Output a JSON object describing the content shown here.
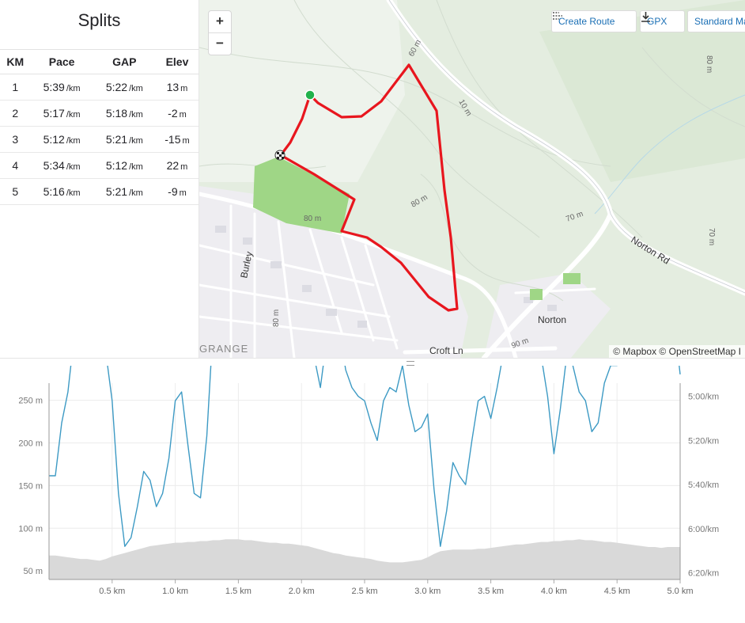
{
  "splits": {
    "title": "Splits",
    "headers": [
      "KM",
      "Pace",
      "GAP",
      "Elev"
    ],
    "rows": [
      {
        "km": "1",
        "pace": "5:39",
        "pace_unit": "/km",
        "gap": "5:22",
        "gap_unit": "/km",
        "elev": "13",
        "elev_unit": "m"
      },
      {
        "km": "2",
        "pace": "5:17",
        "pace_unit": "/km",
        "gap": "5:18",
        "gap_unit": "/km",
        "elev": "-2",
        "elev_unit": "m"
      },
      {
        "km": "3",
        "pace": "5:12",
        "pace_unit": "/km",
        "gap": "5:21",
        "gap_unit": "/km",
        "elev": "-15",
        "elev_unit": "m"
      },
      {
        "km": "4",
        "pace": "5:34",
        "pace_unit": "/km",
        "gap": "5:12",
        "gap_unit": "/km",
        "elev": "22",
        "elev_unit": "m"
      },
      {
        "km": "5",
        "pace": "5:16",
        "pace_unit": "/km",
        "gap": "5:21",
        "gap_unit": "/km",
        "elev": "-9",
        "elev_unit": "m"
      }
    ]
  },
  "map": {
    "zoom_in": "+",
    "zoom_out": "−",
    "create_route": "Create Route",
    "gpx": "GPX",
    "standard_map": "Standard Map",
    "attribution": "© Mapbox © OpenStreetMap I",
    "labels": {
      "norton_rd": "Norton Rd",
      "norton": "Norton",
      "croft_ln": "Croft Ln",
      "burley": "Burley",
      "grange": "GRANGE",
      "c60": "60 m",
      "c70a": "70 m",
      "c70b": "70 m",
      "c80a": "80 m",
      "c80b": "80 m",
      "c80c": "80 m",
      "c80d": "80 m",
      "c10": "10 m",
      "c90": "90 m"
    },
    "colors": {
      "route": "#e8161e",
      "park": "#9fd686",
      "start": "#22b14c"
    },
    "icons": [
      "route-icon",
      "download-icon",
      "checkered-flag-icon"
    ]
  },
  "chart_data": {
    "type": "line",
    "x": [
      0,
      0.05,
      0.1,
      0.15,
      0.2,
      0.25,
      0.3,
      0.35,
      0.4,
      0.45,
      0.5,
      0.55,
      0.6,
      0.65,
      0.7,
      0.75,
      0.8,
      0.85,
      0.9,
      0.95,
      1.0,
      1.05,
      1.1,
      1.15,
      1.2,
      1.25,
      1.3,
      1.35,
      1.4,
      1.45,
      1.5,
      1.55,
      1.6,
      1.65,
      1.7,
      1.75,
      1.8,
      1.85,
      1.9,
      1.95,
      2.0,
      2.05,
      2.1,
      2.15,
      2.2,
      2.25,
      2.3,
      2.35,
      2.4,
      2.45,
      2.5,
      2.55,
      2.6,
      2.65,
      2.7,
      2.75,
      2.8,
      2.85,
      2.9,
      2.95,
      3.0,
      3.05,
      3.1,
      3.15,
      3.2,
      3.25,
      3.3,
      3.35,
      3.4,
      3.45,
      3.5,
      3.55,
      3.6,
      3.65,
      3.7,
      3.75,
      3.8,
      3.85,
      3.9,
      3.95,
      4.0,
      4.05,
      4.1,
      4.15,
      4.2,
      4.25,
      4.3,
      4.35,
      4.4,
      4.45,
      4.5,
      4.55,
      4.6,
      4.65,
      4.7,
      4.75,
      4.8,
      4.85,
      4.9,
      4.95,
      5.0
    ],
    "series": [
      {
        "name": "Pace",
        "axis": "right",
        "unit": "/km",
        "values_seconds": [
          336,
          336,
          312,
          298,
          272,
          264,
          266,
          270,
          272,
          280,
          302,
          344,
          368,
          364,
          350,
          334,
          338,
          350,
          344,
          328,
          302,
          298,
          322,
          344,
          346,
          318,
          268,
          270,
          260,
          268,
          272,
          268,
          260,
          256,
          262,
          258,
          264,
          268,
          270,
          266,
          262,
          264,
          282,
          296,
          274,
          264,
          270,
          288,
          296,
          300,
          302,
          312,
          320,
          302,
          296,
          298,
          286,
          304,
          316,
          314,
          308,
          342,
          368,
          352,
          330,
          336,
          340,
          320,
          302,
          300,
          310,
          296,
          280,
          266,
          250,
          256,
          266,
          276,
          282,
          300,
          326,
          306,
          282,
          286,
          298,
          302,
          316,
          312,
          294,
          286,
          286,
          280,
          274,
          266,
          258,
          260,
          264,
          266,
          268,
          264,
          290
        ]
      },
      {
        "name": "Elevation",
        "axis": "left",
        "unit": "m",
        "fill": "#d9d9d9",
        "values": [
          68,
          68,
          67,
          66,
          65,
          64,
          64,
          63,
          62,
          64,
          67,
          69,
          71,
          73,
          75,
          77,
          79,
          80,
          81,
          82,
          83,
          83,
          84,
          84,
          85,
          85,
          86,
          86,
          87,
          87,
          87,
          86,
          86,
          85,
          84,
          83,
          83,
          82,
          82,
          81,
          80,
          79,
          77,
          75,
          73,
          71,
          70,
          68,
          67,
          66,
          65,
          64,
          62,
          61,
          60,
          60,
          60,
          61,
          62,
          63,
          66,
          70,
          73,
          74,
          75,
          75,
          75,
          75,
          76,
          76,
          77,
          78,
          79,
          80,
          81,
          81,
          82,
          83,
          84,
          84,
          85,
          85,
          86,
          86,
          87,
          86,
          86,
          85,
          84,
          84,
          83,
          82,
          81,
          80,
          79,
          78,
          78,
          77,
          78,
          78,
          78
        ]
      }
    ],
    "x_ticks": [
      "0.5 km",
      "1.0 km",
      "1.5 km",
      "2.0 km",
      "2.5 km",
      "3.0 km",
      "3.5 km",
      "4.0 km",
      "4.5 km",
      "5.0 km"
    ],
    "x_tick_values": [
      0.5,
      1.0,
      1.5,
      2.0,
      2.5,
      3.0,
      3.5,
      4.0,
      4.5,
      5.0
    ],
    "xlim": [
      0,
      5.0
    ],
    "y_left_ticks": [
      "250 m",
      "200 m",
      "150 m",
      "100 m",
      "50 m"
    ],
    "y_left_tick_values": [
      250,
      200,
      150,
      100,
      50
    ],
    "y_left_lim": [
      40,
      270
    ],
    "y_right_ticks": [
      "5:00/km",
      "5:20/km",
      "5:40/km",
      "6:00/km",
      "6:20/km"
    ],
    "y_right_tick_values": [
      300,
      320,
      340,
      360,
      380
    ],
    "y_right_lim": [
      294,
      383
    ],
    "grid": true,
    "pace_color": "#3d9ac4"
  }
}
